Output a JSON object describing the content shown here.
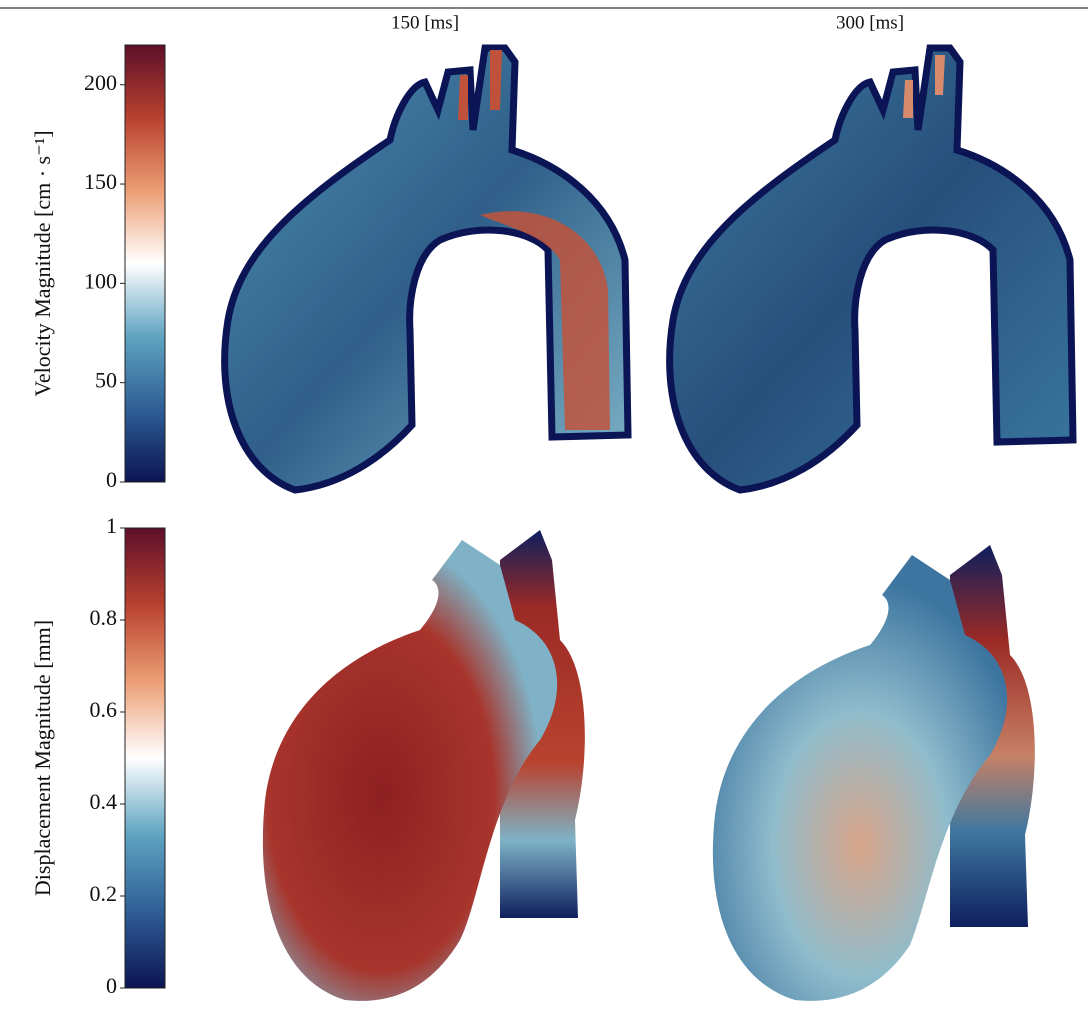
{
  "columns": [
    "150 [ms]",
    "300 [ms]"
  ],
  "colormap": [
    "#0b1454",
    "#2f5f95",
    "#5fa3c1",
    "#ffffff",
    "#ec9e75",
    "#b8412f",
    "#5e0f2a"
  ],
  "colorbars": [
    {
      "label": "Velocity Magnitude [cm · s⁻¹]",
      "lim": [
        0,
        220
      ],
      "ticks": [
        0,
        50,
        100,
        150,
        200
      ]
    },
    {
      "label": "Displacement Magnitude [mm]",
      "lim": [
        0,
        1
      ],
      "ticks": [
        0,
        0.2,
        0.4,
        0.6,
        0.8,
        1
      ]
    }
  ]
}
